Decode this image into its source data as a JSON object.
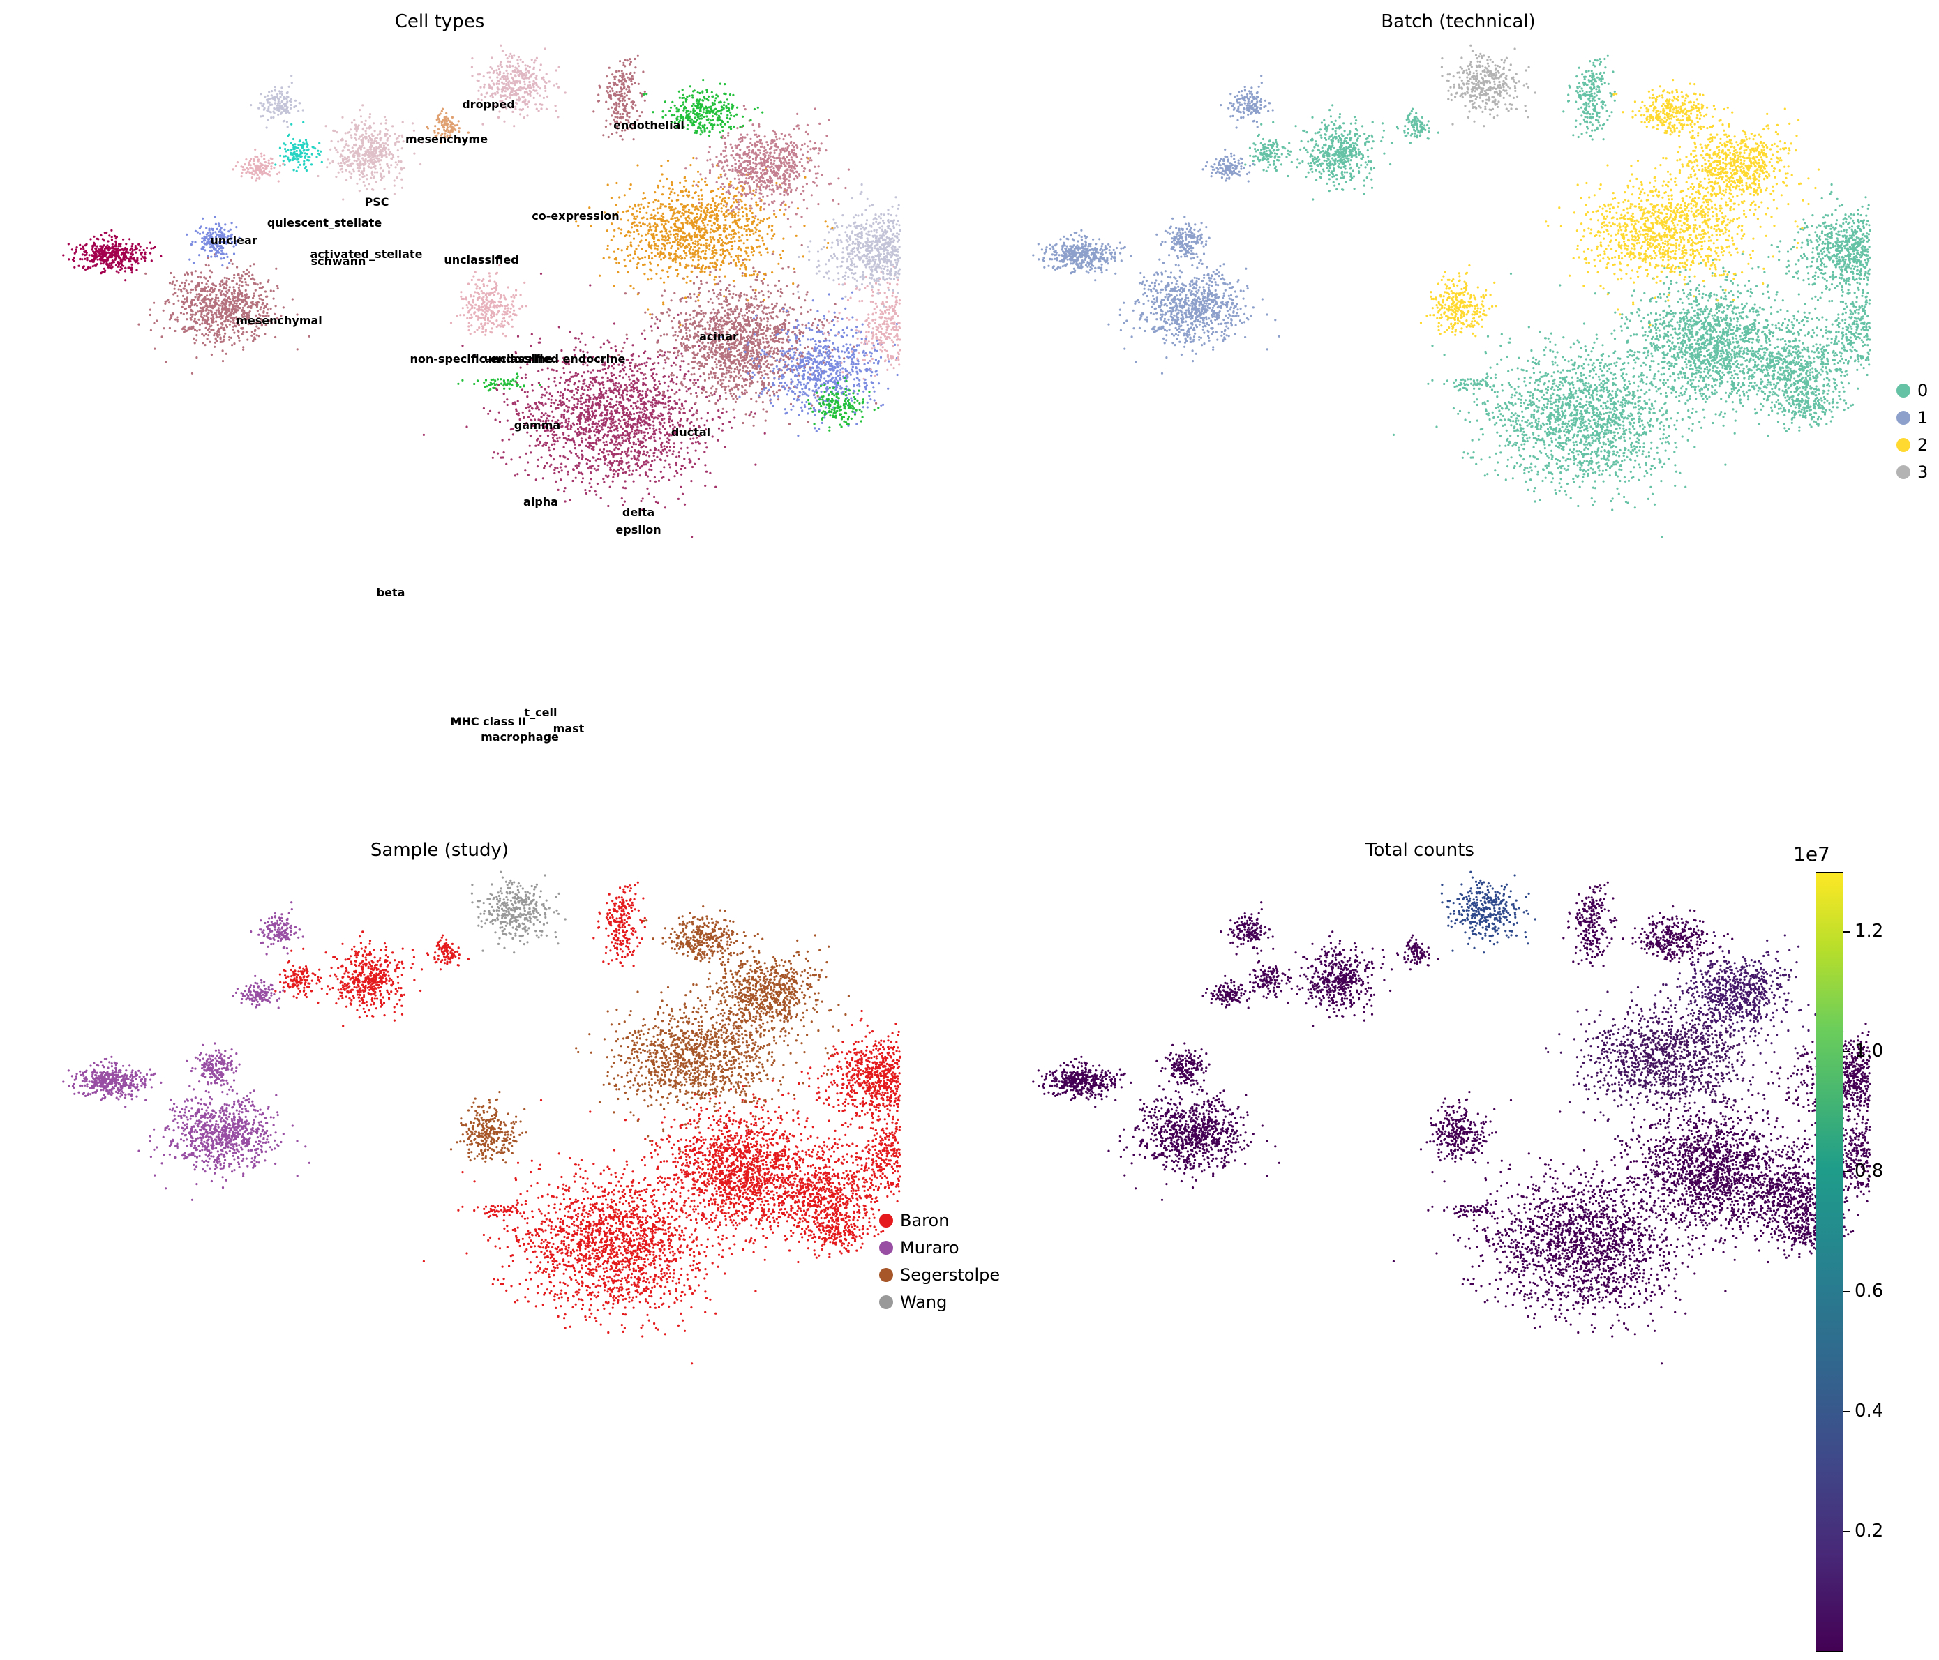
{
  "figure": {
    "panels": [
      {
        "id": "cell-types",
        "title": "Cell types"
      },
      {
        "id": "batch",
        "title": "Batch (technical)"
      },
      {
        "id": "sample",
        "title": "Sample (study)"
      },
      {
        "id": "total-counts",
        "title": "Total counts"
      }
    ]
  },
  "chart_data": [
    {
      "type": "scatter",
      "title": "Cell types",
      "coloring": "categorical",
      "cluster_labels": [
        "dropped",
        "mesenchyme",
        "endothelial",
        "PSC",
        "quiescent_stellate",
        "co-expression",
        "unclear",
        "activated_stellate",
        "schwann",
        "unclassified",
        "mesenchymal",
        "acinar",
        "non-specific-endocrine",
        "unclassified endocrine",
        "gamma",
        "ductal",
        "alpha",
        "delta",
        "epsilon",
        "beta",
        "t_cell",
        "MHC class II",
        "mast",
        "macrophage"
      ],
      "legend": false
    },
    {
      "type": "scatter",
      "title": "Batch (technical)",
      "coloring": "categorical",
      "legend": {
        "placement": "right",
        "entries": [
          {
            "label": "0",
            "color": "#66c2a5"
          },
          {
            "label": "1",
            "color": "#8da0cb"
          },
          {
            "label": "2",
            "color": "#ffd92f"
          },
          {
            "label": "3",
            "color": "#b3b3b3"
          }
        ]
      }
    },
    {
      "type": "scatter",
      "title": "Sample (study)",
      "coloring": "categorical",
      "legend": {
        "placement": "right",
        "entries": [
          {
            "label": "Baron",
            "color": "#e41a1c"
          },
          {
            "label": "Muraro",
            "color": "#984ea3"
          },
          {
            "label": "Segerstolpe",
            "color": "#a65628"
          },
          {
            "label": "Wang",
            "color": "#999999"
          }
        ]
      }
    },
    {
      "type": "scatter",
      "title": "Total counts",
      "coloring": "continuous",
      "colormap": "viridis",
      "colorbar": {
        "ticks": [
          "0.2",
          "0.4",
          "0.6",
          "0.8",
          "1.0",
          "1.2"
        ],
        "tick_values": [
          0.2,
          0.4,
          0.6,
          0.8,
          1.0,
          1.2
        ],
        "multiplier": "1e7",
        "range": [
          0.0,
          1.3
        ]
      }
    }
  ]
}
